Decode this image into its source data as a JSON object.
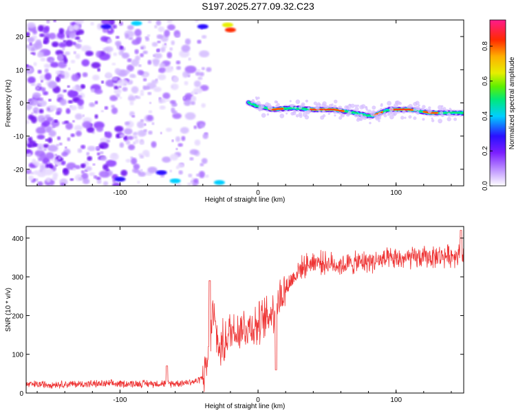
{
  "title": "S197.2025.277.09.32.C23",
  "chart_data": [
    {
      "type": "heatmap",
      "title": "S197.2025.277.09.32.C23",
      "xlabel": "Height of straight line (km)",
      "ylabel": "Frequency (Hz)",
      "xlim": [
        -168,
        149
      ],
      "ylim": [
        -25,
        25
      ],
      "xticks": [
        -100,
        0,
        100
      ],
      "xtick_labels": [
        "-100",
        "0",
        "100"
      ],
      "yticks": [
        -20,
        -10,
        0,
        10,
        20
      ],
      "ytick_labels": [
        "-20",
        "-10",
        "0",
        "10",
        "20"
      ],
      "colorbar": {
        "label": "Normalized spectral amplitude",
        "range": [
          0.0,
          0.95
        ],
        "ticks": [
          0.0,
          0.2,
          0.4,
          0.6,
          0.8
        ],
        "tick_labels": [
          "0.0",
          "0.2",
          "0.4",
          "0.6",
          "0.8"
        ],
        "colormap": "rainbow (white-purple-blue-cyan-green-yellow-orange-red-magenta)"
      },
      "ridge": {
        "description": "narrow band of high amplitude near 0 Hz for heights above 0 km",
        "points": [
          {
            "x": -7,
            "y": 0,
            "amp": 0.45
          },
          {
            "x": 0,
            "y": -1,
            "amp": 0.6
          },
          {
            "x": 10,
            "y": -2,
            "amp": 0.9
          },
          {
            "x": 25,
            "y": -1.5,
            "amp": 0.65
          },
          {
            "x": 40,
            "y": -2,
            "amp": 0.85
          },
          {
            "x": 55,
            "y": -2,
            "amp": 0.9
          },
          {
            "x": 70,
            "y": -3,
            "amp": 0.75
          },
          {
            "x": 82,
            "y": -4,
            "amp": 0.85
          },
          {
            "x": 95,
            "y": -2,
            "amp": 0.8
          },
          {
            "x": 110,
            "y": -2,
            "amp": 0.85
          },
          {
            "x": 125,
            "y": -3,
            "amp": 0.7
          },
          {
            "x": 149,
            "y": -3,
            "amp": 0.5
          }
        ]
      },
      "noise_region": {
        "x_from": -168,
        "x_to": -45,
        "description": "scattered low-amplitude patches"
      }
    },
    {
      "type": "line",
      "xlabel": "Height of straight line (km)",
      "ylabel": "SNR (10 * v/v)",
      "xlim": [
        -168,
        149
      ],
      "ylim": [
        0,
        430
      ],
      "xticks": [
        -100,
        0,
        100
      ],
      "xtick_labels": [
        "-100",
        "0",
        "100"
      ],
      "yticks": [
        0,
        100,
        200,
        300,
        400
      ],
      "ytick_labels": [
        "0",
        "100",
        "200",
        "300",
        "400"
      ],
      "color": "#ee3333",
      "series": [
        {
          "name": "SNR",
          "trend_x": [
            -168,
            -60,
            -45,
            -38,
            -35,
            -33,
            -28,
            -20,
            -10,
            0,
            5,
            10,
            15,
            20,
            30,
            40,
            60,
            80,
            100,
            120,
            140,
            149
          ],
          "trend_y": [
            22,
            25,
            30,
            45,
            120,
            210,
            110,
            160,
            170,
            175,
            190,
            210,
            240,
            270,
            320,
            340,
            330,
            340,
            345,
            350,
            355,
            360
          ],
          "features": [
            {
              "x": -66,
              "y": 70
            },
            {
              "x": -35,
              "y": 290
            },
            {
              "x": 13,
              "y": 60
            },
            {
              "x": 147,
              "y": 420
            }
          ]
        }
      ]
    }
  ]
}
